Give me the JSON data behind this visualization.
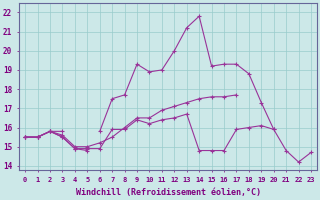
{
  "x": [
    0,
    1,
    2,
    3,
    4,
    5,
    6,
    7,
    8,
    9,
    10,
    11,
    12,
    13,
    14,
    15,
    16,
    17,
    18,
    19,
    20,
    21,
    22,
    23
  ],
  "line1": [
    15.5,
    15.5,
    15.8,
    15.5,
    14.9,
    14.8,
    null,
    null,
    null,
    null,
    null,
    null,
    null,
    null,
    null,
    null,
    null,
    null,
    null,
    null,
    null,
    null,
    null,
    null
  ],
  "line2": [
    15.5,
    15.5,
    15.8,
    15.5,
    14.9,
    14.9,
    14.9,
    15.9,
    15.9,
    16.4,
    16.2,
    16.4,
    16.5,
    16.7,
    14.8,
    14.8,
    14.8,
    15.9,
    16.0,
    16.1,
    15.9,
    null,
    null,
    null
  ],
  "line3": [
    15.5,
    15.5,
    15.8,
    15.6,
    15.0,
    15.0,
    15.2,
    15.5,
    16.0,
    16.5,
    16.5,
    16.9,
    17.1,
    17.3,
    17.5,
    17.6,
    17.6,
    17.7,
    null,
    null,
    null,
    null,
    null,
    null
  ],
  "line4": [
    15.5,
    15.5,
    15.8,
    15.8,
    null,
    null,
    15.8,
    17.5,
    17.7,
    19.3,
    18.9,
    19.0,
    20.0,
    21.2,
    21.8,
    19.2,
    19.3,
    19.3,
    18.8,
    17.3,
    15.9,
    14.8,
    14.2,
    14.7
  ],
  "bg_color": "#cce8e8",
  "line_color": "#993399",
  "grid_color": "#99cccc",
  "ylabel_values": [
    14,
    15,
    16,
    17,
    18,
    19,
    20,
    21,
    22
  ],
  "ylim": [
    13.8,
    22.5
  ],
  "xlim": [
    -0.5,
    23.5
  ],
  "xlabel": "Windchill (Refroidissement éolien,°C)",
  "xlabel_color": "#800080",
  "tick_color": "#800080"
}
